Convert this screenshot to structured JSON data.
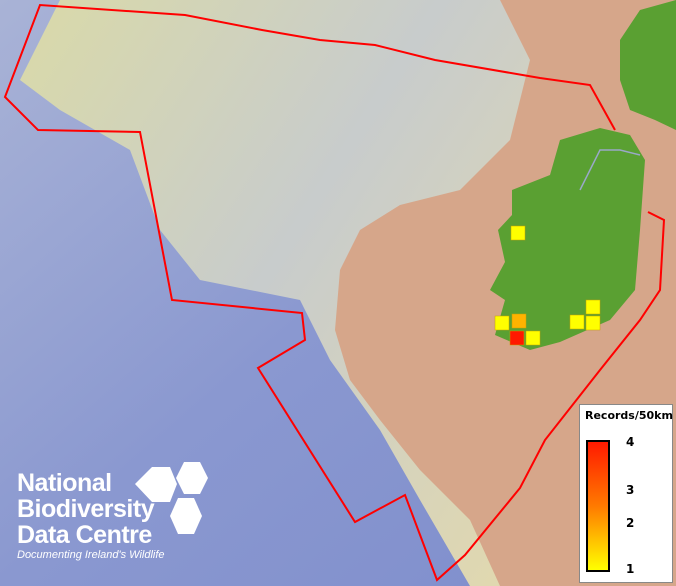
{
  "map": {
    "colors": {
      "sea_deep": "#7f8fcc",
      "sea_shelf": "#d8d8b0",
      "land_shelf": "#d7a88c",
      "land": "#5aa032",
      "boundary": "#ff0000"
    },
    "records": [
      {
        "count": 1
      },
      {
        "count": 1
      },
      {
        "count": 2
      },
      {
        "count": 1
      },
      {
        "count": 4
      },
      {
        "count": 1
      },
      {
        "count": 1
      },
      {
        "count": 1
      }
    ]
  },
  "legend": {
    "title": "Records/50km",
    "ticks": [
      "4",
      "3",
      "2",
      "1"
    ],
    "ramp_colors": [
      "#ffff00",
      "#ff1a00"
    ]
  },
  "logo": {
    "line1": "National",
    "line2": "Biodiversity",
    "line3": "Data Centre",
    "tagline": "Documenting Ireland's Wildlife"
  }
}
